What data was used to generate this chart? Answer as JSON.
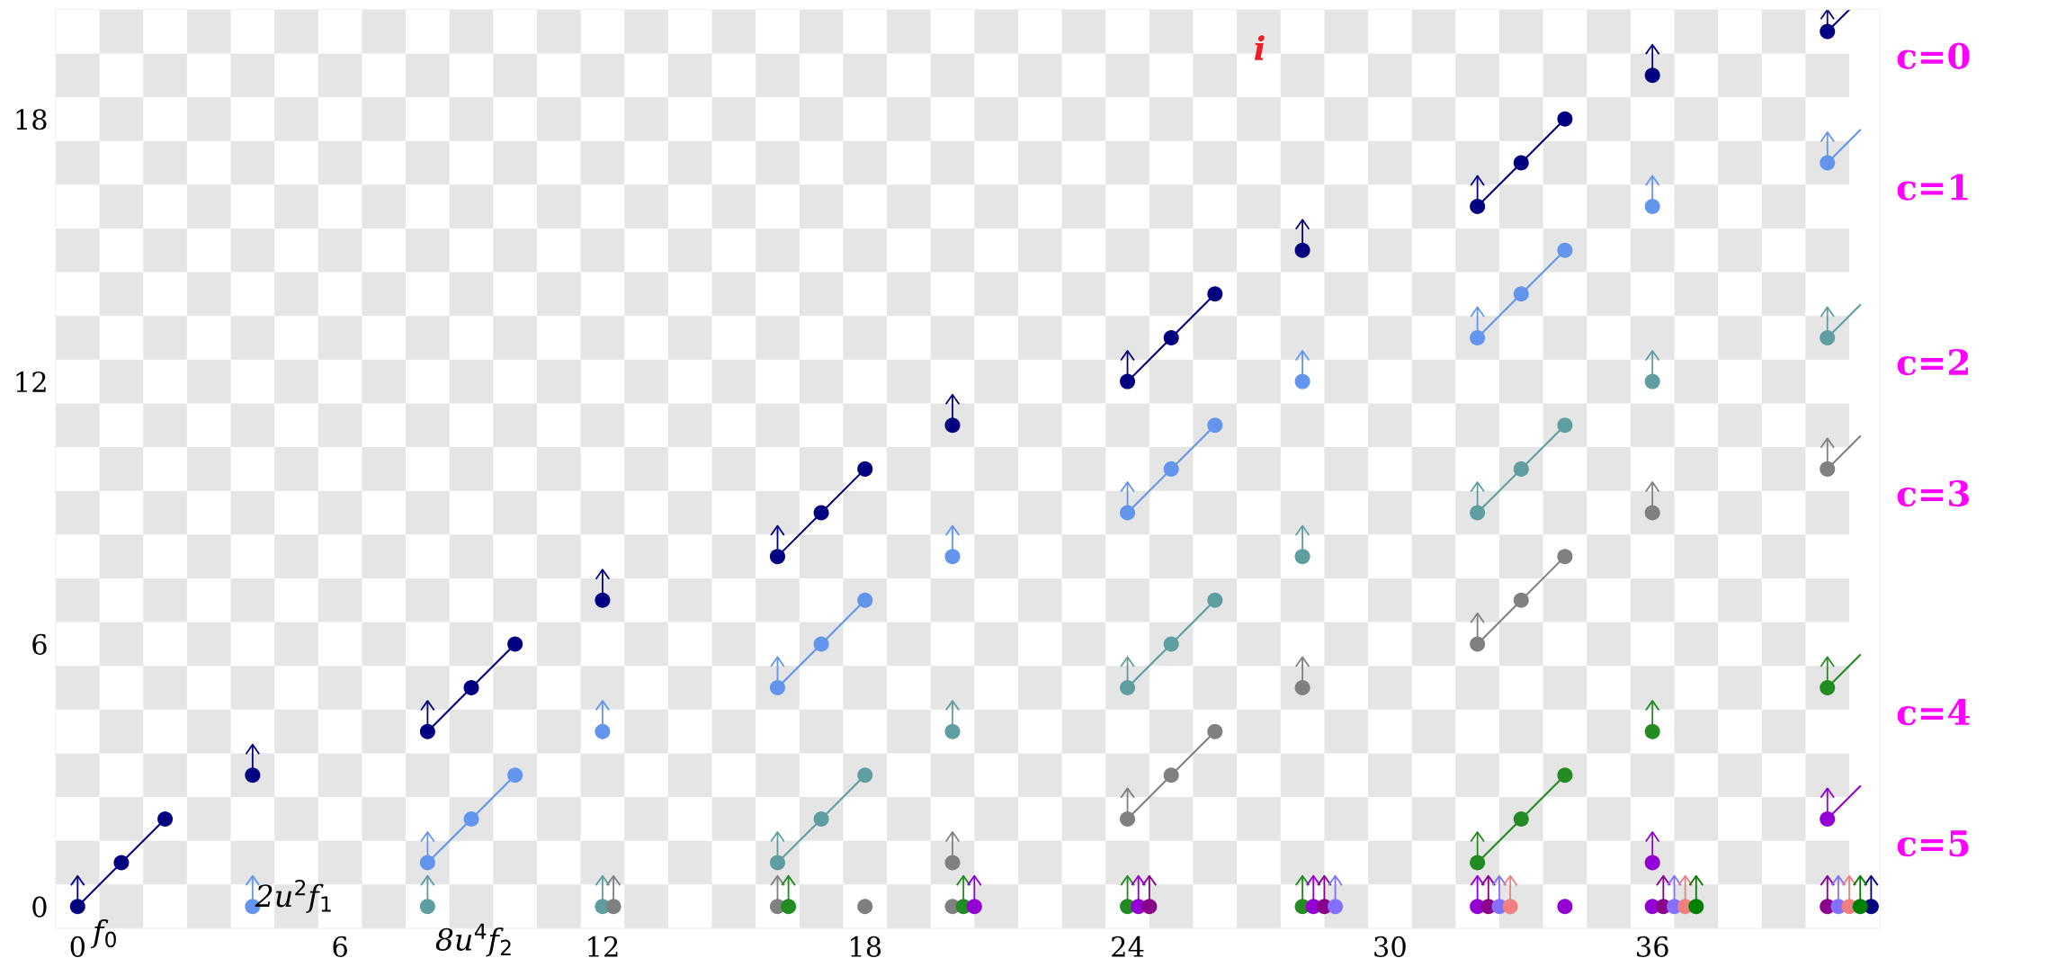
{
  "chart_data": {
    "type": "scatter",
    "xlim": [
      -0.5,
      41.2
    ],
    "ylim": [
      -0.5,
      20.5
    ],
    "xticks": [
      0,
      6,
      12,
      18,
      24,
      30,
      36
    ],
    "yticks": [
      0,
      6,
      12,
      18
    ],
    "grid": false,
    "marker": "circle",
    "series": [
      {
        "type": "line",
        "marker": "none",
        "color": "#000080",
        "x": [
          0,
          1,
          2
        ],
        "values": [
          0,
          1,
          2
        ]
      },
      {
        "type": "line",
        "marker": "none",
        "color": "#000080",
        "x": [
          8,
          9,
          10
        ],
        "values": [
          4,
          5,
          6
        ]
      },
      {
        "type": "line",
        "marker": "none",
        "color": "#000080",
        "x": [
          16,
          17,
          18
        ],
        "values": [
          8,
          9,
          10
        ]
      },
      {
        "type": "line",
        "marker": "none",
        "color": "#000080",
        "x": [
          24,
          25,
          26
        ],
        "values": [
          12,
          13,
          14
        ]
      },
      {
        "type": "line",
        "marker": "none",
        "color": "#000080",
        "x": [
          32,
          33,
          34
        ],
        "values": [
          16,
          17,
          18
        ]
      },
      {
        "type": "line",
        "marker": "none",
        "color": "#000080",
        "x": [
          40,
          40.5
        ],
        "values": [
          20,
          20.5
        ]
      },
      {
        "type": "line",
        "marker": "none",
        "color": "#6495ed",
        "x": [
          8,
          9,
          10
        ],
        "values": [
          1,
          2,
          3
        ]
      },
      {
        "type": "line",
        "marker": "none",
        "color": "#6495ed",
        "x": [
          16,
          17,
          18
        ],
        "values": [
          5,
          6,
          7
        ]
      },
      {
        "type": "line",
        "marker": "none",
        "color": "#6495ed",
        "x": [
          24,
          25,
          26
        ],
        "values": [
          9,
          10,
          11
        ]
      },
      {
        "type": "line",
        "marker": "none",
        "color": "#6495ed",
        "x": [
          32,
          33,
          34
        ],
        "values": [
          13,
          14,
          15
        ]
      },
      {
        "type": "line",
        "marker": "none",
        "color": "#6495ed",
        "x": [
          40,
          40.75
        ],
        "values": [
          17,
          17.75
        ]
      },
      {
        "type": "line",
        "marker": "none",
        "color": "#5f9ea0",
        "x": [
          16,
          17,
          18
        ],
        "values": [
          1,
          2,
          3
        ]
      },
      {
        "type": "line",
        "marker": "none",
        "color": "#5f9ea0",
        "x": [
          24,
          25,
          26
        ],
        "values": [
          5,
          6,
          7
        ]
      },
      {
        "type": "line",
        "marker": "none",
        "color": "#5f9ea0",
        "x": [
          32,
          33,
          34
        ],
        "values": [
          9,
          10,
          11
        ]
      },
      {
        "type": "line",
        "marker": "none",
        "color": "#5f9ea0",
        "x": [
          40,
          40.75
        ],
        "values": [
          13,
          13.75
        ]
      },
      {
        "type": "line",
        "marker": "none",
        "color": "#808080",
        "x": [
          24,
          25,
          26
        ],
        "values": [
          2,
          3,
          4
        ]
      },
      {
        "type": "line",
        "marker": "none",
        "color": "#808080",
        "x": [
          32,
          33,
          34
        ],
        "values": [
          6,
          7,
          8
        ]
      },
      {
        "type": "line",
        "marker": "none",
        "color": "#808080",
        "x": [
          40,
          40.75
        ],
        "values": [
          10,
          10.75
        ]
      },
      {
        "type": "line",
        "marker": "none",
        "color": "#228b22",
        "x": [
          32,
          33,
          34
        ],
        "values": [
          1,
          2,
          3
        ]
      },
      {
        "type": "line",
        "marker": "none",
        "color": "#228b22",
        "x": [
          40,
          40.75
        ],
        "values": [
          5,
          5.75
        ]
      },
      {
        "type": "line",
        "marker": "none",
        "color": "#9400d3",
        "x": [
          40,
          40.75
        ],
        "values": [
          2,
          2.75
        ]
      },
      {
        "color": "#000080",
        "x": [
          0,
          1,
          2,
          4,
          8,
          9,
          10,
          12,
          16,
          17,
          18,
          20,
          24,
          25,
          26,
          28,
          32,
          33,
          34,
          36,
          40,
          41
        ],
        "values": [
          0,
          1,
          2,
          3,
          4,
          5,
          6,
          7,
          8,
          9,
          10,
          11,
          12,
          13,
          14,
          15,
          16,
          17,
          18,
          19,
          20,
          0
        ],
        "errors": [
          [
            0,
            0.7
          ],
          null,
          null,
          [
            3,
            3.7
          ],
          [
            4,
            4.7
          ],
          null,
          null,
          [
            7,
            7.7
          ],
          [
            8,
            8.7
          ],
          null,
          null,
          [
            11,
            11.7
          ],
          [
            12,
            12.7
          ],
          null,
          null,
          [
            15,
            15.7
          ],
          [
            16,
            16.7
          ],
          null,
          null,
          [
            19,
            19.7
          ],
          [
            20,
            20.5
          ],
          [
            0,
            0.7
          ]
        ]
      },
      {
        "color": "#6495ed",
        "x": [
          4,
          8,
          9,
          10,
          12,
          16,
          17,
          18,
          20,
          24,
          25,
          26,
          28,
          32,
          33,
          34,
          36,
          40
        ],
        "values": [
          0,
          1,
          2,
          3,
          4,
          5,
          6,
          7,
          8,
          9,
          10,
          11,
          12,
          13,
          14,
          15,
          16,
          17
        ],
        "errors": [
          [
            0,
            0.7
          ],
          [
            1,
            1.7
          ],
          null,
          null,
          [
            4,
            4.7
          ],
          [
            5,
            5.7
          ],
          null,
          null,
          [
            8,
            8.7
          ],
          [
            9,
            9.7
          ],
          null,
          null,
          [
            12,
            12.7
          ],
          [
            13,
            13.7
          ],
          null,
          null,
          [
            16,
            16.7
          ],
          [
            17,
            17.7
          ]
        ]
      },
      {
        "color": "#5f9ea0",
        "x": [
          8,
          12,
          16,
          17,
          18,
          20,
          24,
          25,
          26,
          28,
          32,
          33,
          34,
          36,
          40
        ],
        "values": [
          0,
          0,
          1,
          2,
          3,
          4,
          5,
          6,
          7,
          8,
          9,
          10,
          11,
          12,
          13
        ],
        "errors": [
          [
            0,
            0.7
          ],
          [
            0,
            0.7
          ],
          [
            1,
            1.7
          ],
          null,
          null,
          [
            4,
            4.7
          ],
          [
            5,
            5.7
          ],
          null,
          null,
          [
            8,
            8.7
          ],
          [
            9,
            9.7
          ],
          null,
          null,
          [
            12,
            12.7
          ],
          [
            13,
            13.7
          ]
        ]
      },
      {
        "color": "#808080",
        "x": [
          12.25,
          16,
          18,
          20,
          20,
          24,
          25,
          26,
          28,
          32,
          33,
          34,
          36,
          40
        ],
        "values": [
          0,
          0,
          0,
          0,
          1,
          2,
          3,
          4,
          5,
          6,
          7,
          8,
          9,
          10
        ],
        "errors": [
          [
            0,
            0.7
          ],
          [
            0,
            0.7
          ],
          null,
          null,
          [
            1,
            1.7
          ],
          [
            2,
            2.7
          ],
          null,
          null,
          [
            5,
            5.7
          ],
          [
            6,
            6.7
          ],
          null,
          null,
          [
            9,
            9.7
          ],
          [
            10,
            10.7
          ]
        ]
      },
      {
        "color": "#228b22",
        "x": [
          16.25,
          20.25,
          24,
          28,
          32,
          33,
          34,
          36,
          40
        ],
        "values": [
          0,
          0,
          0,
          0,
          1,
          2,
          3,
          4,
          5
        ],
        "errors": [
          [
            0,
            0.7
          ],
          [
            0,
            0.7
          ],
          [
            0,
            0.7
          ],
          [
            0,
            0.7
          ],
          [
            1,
            1.7
          ],
          null,
          null,
          [
            4,
            4.7
          ],
          [
            5,
            5.7
          ]
        ]
      },
      {
        "color": "#9400d3",
        "x": [
          20.5,
          24.25,
          28.25,
          32,
          34,
          36,
          36,
          40
        ],
        "values": [
          0,
          0,
          0,
          0,
          0,
          0,
          1,
          2
        ],
        "errors": [
          [
            0,
            0.7
          ],
          [
            0,
            0.7
          ],
          [
            0,
            0.7
          ],
          [
            0,
            0.7
          ],
          null,
          null,
          [
            1,
            1.7
          ],
          [
            2,
            2.7
          ]
        ]
      },
      {
        "color": "#8b008b",
        "x": [
          24.5,
          28.5,
          32.25,
          36.25,
          40
        ],
        "values": [
          0,
          0,
          0,
          0,
          0
        ],
        "errors": [
          [
            0,
            0.7
          ],
          [
            0,
            0.7
          ],
          [
            0,
            0.7
          ],
          [
            0,
            0.7
          ],
          [
            0,
            0.7
          ]
        ]
      },
      {
        "color": "#8470ff",
        "x": [
          28.75,
          32.5,
          36.5,
          40.25
        ],
        "values": [
          0,
          0,
          0,
          0
        ],
        "errors": [
          [
            0,
            0.7
          ],
          [
            0,
            0.7
          ],
          [
            0,
            0.7
          ],
          [
            0,
            0.7
          ]
        ]
      },
      {
        "color": "#f08080",
        "x": [
          32.75,
          36.75,
          40.5
        ],
        "values": [
          0,
          0,
          0
        ],
        "errors": [
          [
            0,
            0.7
          ],
          [
            0,
            0.7
          ],
          [
            0,
            0.7
          ]
        ]
      },
      {
        "color": "#008000",
        "x": [
          37,
          40.75
        ],
        "values": [
          0,
          0
        ],
        "errors": [
          [
            0,
            0.7
          ],
          [
            0,
            0.7
          ]
        ]
      }
    ],
    "annotations": [
      {
        "text": "f$_{0}$",
        "x": 0,
        "y": 0
      },
      {
        "text": "2u$^{2}$f$_{1}$",
        "x": 4,
        "y": 0
      },
      {
        "text": "8u$^{4}$f$_{2}$",
        "x": 8,
        "y": 0
      },
      "i",
      {
        "text": "c=0",
        "x": 40,
        "y": 20
      },
      {
        "text": "c=1",
        "x": 40,
        "y": 17
      },
      {
        "text": "c=2",
        "x": 40,
        "y": 13
      },
      {
        "text": "c=3",
        "x": 40,
        "y": 10
      },
      {
        "text": "c=4",
        "x": 40,
        "y": 5
      },
      {
        "text": "c=5",
        "x": 40,
        "y": 2
      }
    ]
  }
}
